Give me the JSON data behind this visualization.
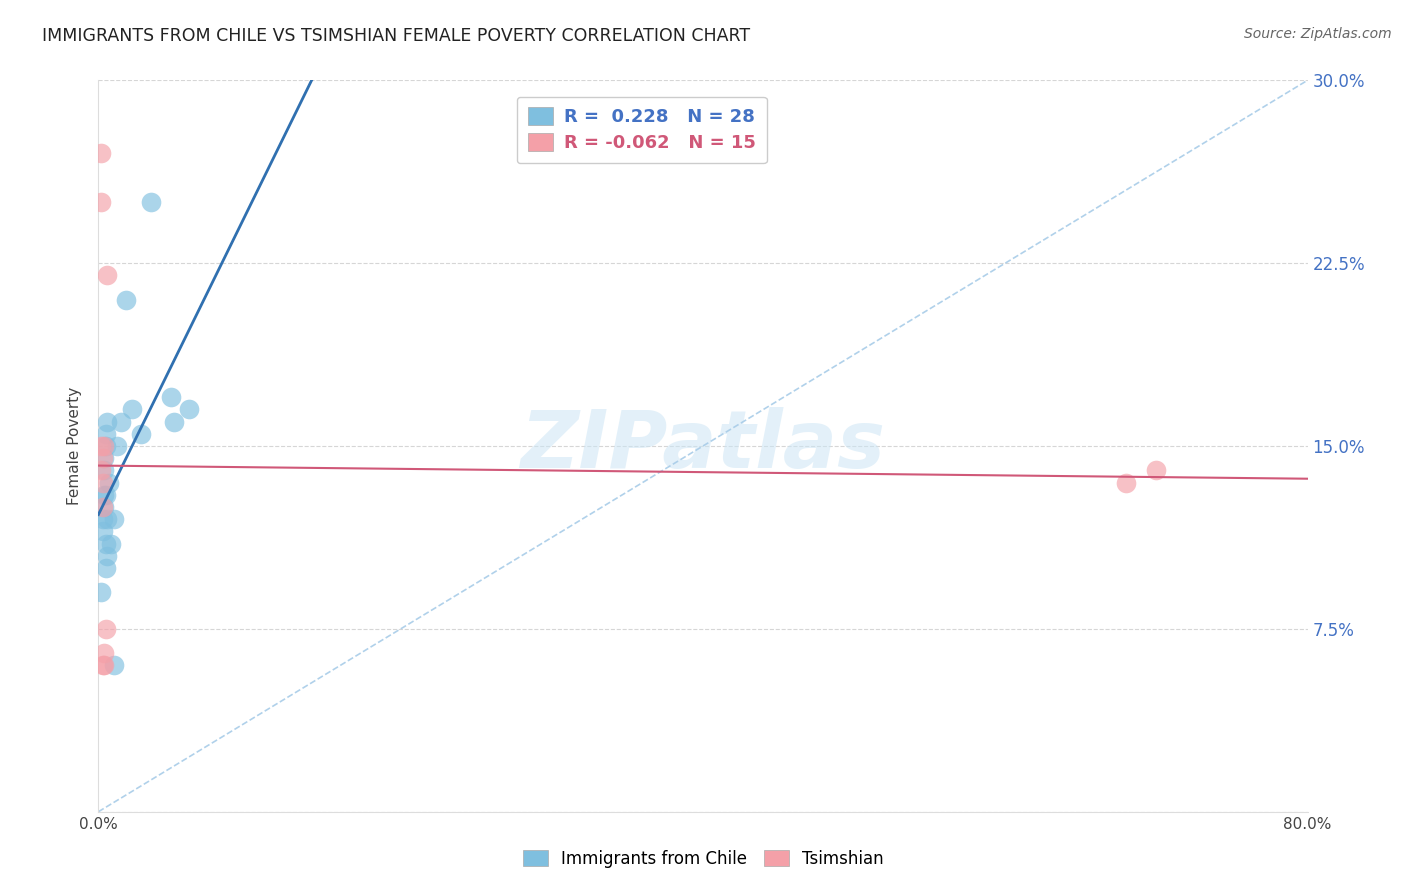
{
  "title": "IMMIGRANTS FROM CHILE VS TSIMSHIAN FEMALE POVERTY CORRELATION CHART",
  "source": "Source: ZipAtlas.com",
  "ylabel": "Female Poverty",
  "xlim": [
    0.0,
    0.8
  ],
  "ylim": [
    0.0,
    0.3
  ],
  "xticks": [
    0.0,
    0.1,
    0.2,
    0.3,
    0.4,
    0.5,
    0.6,
    0.7,
    0.8
  ],
  "yticks": [
    0.0,
    0.075,
    0.15,
    0.225,
    0.3
  ],
  "xtick_labels": [
    "0.0%",
    "",
    "",
    "",
    "",
    "",
    "",
    "",
    "80.0%"
  ],
  "ytick_labels": [
    "",
    "7.5%",
    "15.0%",
    "22.5%",
    "30.0%"
  ],
  "blue_color": "#7fbfdf",
  "pink_color": "#f4a0a8",
  "blue_line_color": "#3070b0",
  "pink_line_color": "#d05878",
  "dashed_line_color": "#a8cce8",
  "watermark_text": "ZIPatlas",
  "legend_R_blue": " 0.228",
  "legend_N_blue": "28",
  "legend_R_pink": "-0.062",
  "legend_N_pink": "15",
  "legend_label_blue": "Immigrants from Chile",
  "legend_label_pink": "Tsimshian",
  "blue_x": [
    0.002,
    0.003,
    0.003,
    0.004,
    0.004,
    0.004,
    0.004,
    0.005,
    0.005,
    0.005,
    0.005,
    0.005,
    0.006,
    0.006,
    0.006,
    0.007,
    0.008,
    0.01,
    0.012,
    0.015,
    0.018,
    0.022,
    0.028,
    0.035,
    0.048,
    0.05,
    0.06,
    0.01
  ],
  "blue_y": [
    0.09,
    0.115,
    0.12,
    0.125,
    0.13,
    0.14,
    0.145,
    0.1,
    0.11,
    0.13,
    0.15,
    0.155,
    0.105,
    0.12,
    0.16,
    0.135,
    0.11,
    0.12,
    0.15,
    0.16,
    0.21,
    0.165,
    0.155,
    0.25,
    0.17,
    0.16,
    0.165,
    0.06
  ],
  "pink_x": [
    0.002,
    0.002,
    0.002,
    0.003,
    0.003,
    0.003,
    0.003,
    0.004,
    0.004,
    0.005,
    0.006,
    0.002,
    0.7,
    0.68,
    0.004
  ],
  "pink_y": [
    0.27,
    0.25,
    0.14,
    0.145,
    0.135,
    0.125,
    0.06,
    0.15,
    0.065,
    0.075,
    0.22,
    0.15,
    0.14,
    0.135,
    0.06
  ]
}
